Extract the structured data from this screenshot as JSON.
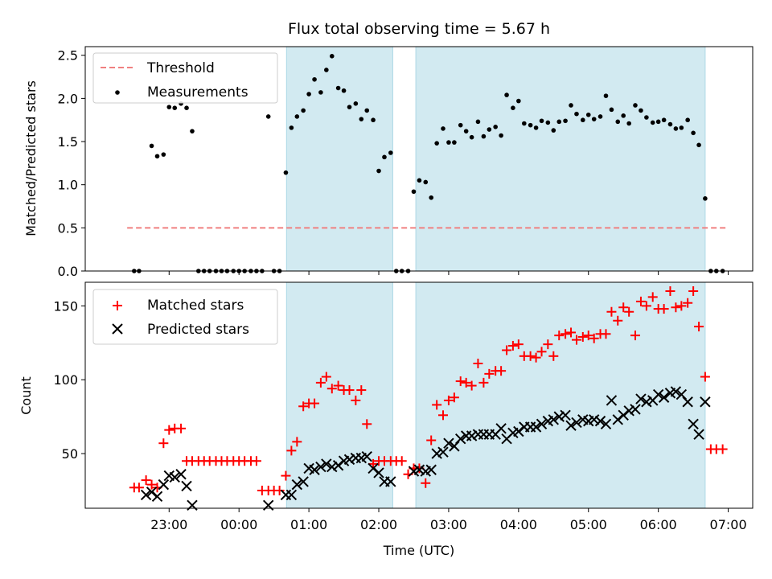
{
  "figure": {
    "title": "Flux total observing time = 5.67 h",
    "xlabel": "Time (UTC)",
    "x_ticks": [
      "23:00",
      "00:00",
      "01:00",
      "02:00",
      "03:00",
      "04:00",
      "05:00",
      "06:00",
      "07:00"
    ],
    "x_tick_hours": [
      23,
      24,
      25,
      26,
      27,
      28,
      29,
      30,
      31
    ],
    "xlim_hours": [
      21.8,
      31.35
    ],
    "shade_color": "#add8e6",
    "shaded_intervals_hours": [
      [
        24.68,
        26.2
      ],
      [
        26.53,
        30.67
      ]
    ]
  },
  "chart_data": [
    {
      "type": "scatter",
      "ylabel": "Matched/Predicted stars",
      "ylim": [
        0,
        2.6
      ],
      "y_ticks": [
        "0.0",
        "0.5",
        "1.0",
        "1.5",
        "2.0",
        "2.5"
      ],
      "y_tick_values": [
        0,
        0.5,
        1.0,
        1.5,
        2.0,
        2.5
      ],
      "legend_position": "upper-left",
      "series": [
        {
          "name": "Threshold",
          "style": "dashed-line",
          "color": "#f08080",
          "x": [
            22.4,
            31.0
          ],
          "y": [
            0.5,
            0.5
          ]
        },
        {
          "name": "Measurements",
          "style": "dot",
          "color": "#000000",
          "x": [
            22.5,
            22.57,
            22.75,
            22.83,
            22.92,
            23.0,
            23.08,
            23.17,
            23.25,
            23.33,
            23.42,
            23.5,
            23.58,
            23.67,
            23.75,
            23.83,
            23.92,
            24.0,
            24.08,
            24.17,
            24.25,
            24.33,
            24.42,
            24.5,
            24.58,
            24.67,
            24.75,
            24.83,
            24.92,
            25.0,
            25.08,
            25.17,
            25.25,
            25.33,
            25.42,
            25.5,
            25.58,
            25.67,
            25.75,
            25.83,
            25.92,
            26.0,
            26.08,
            26.17,
            26.25,
            26.33,
            26.42,
            26.5,
            26.58,
            26.67,
            26.75,
            26.83,
            26.92,
            27.0,
            27.08,
            27.17,
            27.25,
            27.33,
            27.42,
            27.5,
            27.58,
            27.67,
            27.75,
            27.83,
            27.92,
            28.0,
            28.08,
            28.17,
            28.25,
            28.33,
            28.42,
            28.5,
            28.58,
            28.67,
            28.75,
            28.83,
            28.92,
            29.0,
            29.08,
            29.17,
            29.25,
            29.33,
            29.42,
            29.5,
            29.58,
            29.67,
            29.75,
            29.83,
            29.92,
            30.0,
            30.08,
            30.17,
            30.25,
            30.33,
            30.42,
            30.5,
            30.58,
            30.67,
            30.75,
            30.83,
            30.92
          ],
          "y": [
            0,
            0,
            1.45,
            1.33,
            1.35,
            1.9,
            1.89,
            1.94,
            1.89,
            1.62,
            0,
            0,
            0,
            0,
            0,
            0,
            0,
            0,
            0,
            0,
            0,
            0,
            1.79,
            0,
            0,
            1.14,
            1.66,
            1.79,
            1.86,
            2.05,
            2.22,
            2.07,
            2.33,
            2.49,
            2.12,
            2.09,
            1.9,
            1.94,
            1.76,
            1.86,
            1.75,
            1.16,
            1.32,
            1.37,
            0,
            0,
            0,
            0.92,
            1.05,
            1.03,
            0.85,
            1.48,
            1.65,
            1.49,
            1.49,
            1.69,
            1.62,
            1.55,
            1.73,
            1.56,
            1.64,
            1.67,
            1.57,
            2.04,
            1.89,
            1.97,
            1.71,
            1.69,
            1.66,
            1.74,
            1.72,
            1.63,
            1.73,
            1.74,
            1.92,
            1.82,
            1.75,
            1.81,
            1.76,
            1.79,
            2.03,
            1.87,
            1.73,
            1.8,
            1.71,
            1.92,
            1.86,
            1.78,
            1.72,
            1.73,
            1.75,
            1.7,
            1.65,
            1.66,
            1.75,
            1.6,
            1.46,
            0.84,
            0,
            0,
            0
          ]
        }
      ]
    },
    {
      "type": "scatter",
      "ylabel": "Count",
      "ylim": [
        13,
        166
      ],
      "y_ticks": [
        "50",
        "100",
        "150"
      ],
      "y_tick_values": [
        50,
        100,
        150
      ],
      "legend_position": "upper-left",
      "series": [
        {
          "name": "Matched stars",
          "style": "plus",
          "color": "#ff0000",
          "x": [
            22.5,
            22.57,
            22.67,
            22.75,
            22.83,
            22.92,
            23.0,
            23.08,
            23.17,
            23.25,
            23.33,
            23.42,
            23.5,
            23.58,
            23.67,
            23.75,
            23.83,
            23.92,
            24.0,
            24.08,
            24.17,
            24.25,
            24.33,
            24.42,
            24.5,
            24.58,
            24.67,
            24.75,
            24.83,
            24.92,
            25.0,
            25.08,
            25.17,
            25.25,
            25.33,
            25.42,
            25.5,
            25.58,
            25.67,
            25.75,
            25.83,
            25.92,
            26.0,
            26.08,
            26.17,
            26.25,
            26.33,
            26.42,
            26.5,
            26.58,
            26.67,
            26.75,
            26.83,
            26.92,
            27.0,
            27.08,
            27.17,
            27.25,
            27.33,
            27.42,
            27.5,
            27.58,
            27.67,
            27.75,
            27.83,
            27.92,
            28.0,
            28.08,
            28.17,
            28.25,
            28.33,
            28.42,
            28.5,
            28.58,
            28.67,
            28.75,
            28.83,
            28.92,
            29.0,
            29.08,
            29.17,
            29.25,
            29.33,
            29.42,
            29.5,
            29.58,
            29.67,
            29.75,
            29.83,
            29.92,
            30.0,
            30.08,
            30.17,
            30.25,
            30.33,
            30.42,
            30.5,
            30.58,
            30.67,
            30.75,
            30.83,
            30.92
          ],
          "y": [
            27,
            27,
            32,
            29,
            27,
            57,
            66,
            67,
            67,
            45,
            45,
            45,
            45,
            45,
            45,
            45,
            45,
            45,
            45,
            45,
            45,
            45,
            25,
            25,
            25,
            25,
            35,
            52,
            58,
            82,
            84,
            84,
            98,
            102,
            94,
            96,
            93,
            93,
            86,
            93,
            70,
            43,
            45,
            45,
            45,
            45,
            45,
            36,
            40,
            40,
            30,
            59,
            83,
            76,
            86,
            88,
            99,
            98,
            96,
            111,
            98,
            104,
            106,
            106,
            120,
            123,
            124,
            116,
            116,
            115,
            119,
            124,
            116,
            130,
            131,
            132,
            127,
            129,
            130,
            128,
            131,
            131,
            146,
            140,
            149,
            146,
            130,
            153,
            150,
            156,
            148,
            148,
            160,
            149,
            150,
            152,
            160,
            136,
            102,
            53,
            53,
            53
          ]
        },
        {
          "name": "Predicted stars",
          "style": "x",
          "color": "#000000",
          "x": [
            22.67,
            22.75,
            22.83,
            22.92,
            23.0,
            23.08,
            23.17,
            23.25,
            23.33,
            24.42,
            24.67,
            24.75,
            24.83,
            24.92,
            25.0,
            25.08,
            25.17,
            25.25,
            25.33,
            25.42,
            25.5,
            25.58,
            25.67,
            25.75,
            25.83,
            25.92,
            26.0,
            26.08,
            26.17,
            26.5,
            26.58,
            26.67,
            26.75,
            26.83,
            26.92,
            27.0,
            27.08,
            27.17,
            27.25,
            27.33,
            27.42,
            27.5,
            27.58,
            27.67,
            27.75,
            27.83,
            27.92,
            28.0,
            28.08,
            28.17,
            28.25,
            28.33,
            28.42,
            28.5,
            28.58,
            28.67,
            28.75,
            28.83,
            28.92,
            29.0,
            29.08,
            29.17,
            29.25,
            29.33,
            29.42,
            29.5,
            29.58,
            29.67,
            29.75,
            29.83,
            29.92,
            30.0,
            30.08,
            30.17,
            30.25,
            30.33,
            30.42,
            30.5,
            30.58,
            30.67
          ],
          "y": [
            22,
            24,
            21,
            29,
            35,
            34,
            36,
            28,
            15,
            15,
            22,
            22,
            29,
            31,
            40,
            39,
            41,
            43,
            41,
            42,
            45,
            46,
            47,
            47,
            48,
            40,
            37,
            31,
            31,
            38,
            39,
            38,
            39,
            50,
            51,
            57,
            55,
            60,
            62,
            62,
            63,
            63,
            63,
            63,
            67,
            60,
            64,
            65,
            68,
            68,
            68,
            70,
            72,
            73,
            75,
            76,
            69,
            71,
            73,
            72,
            73,
            72,
            70,
            86,
            73,
            76,
            79,
            80,
            87,
            85,
            86,
            90,
            88,
            91,
            92,
            90,
            85,
            70,
            63,
            85
          ]
        }
      ]
    }
  ]
}
